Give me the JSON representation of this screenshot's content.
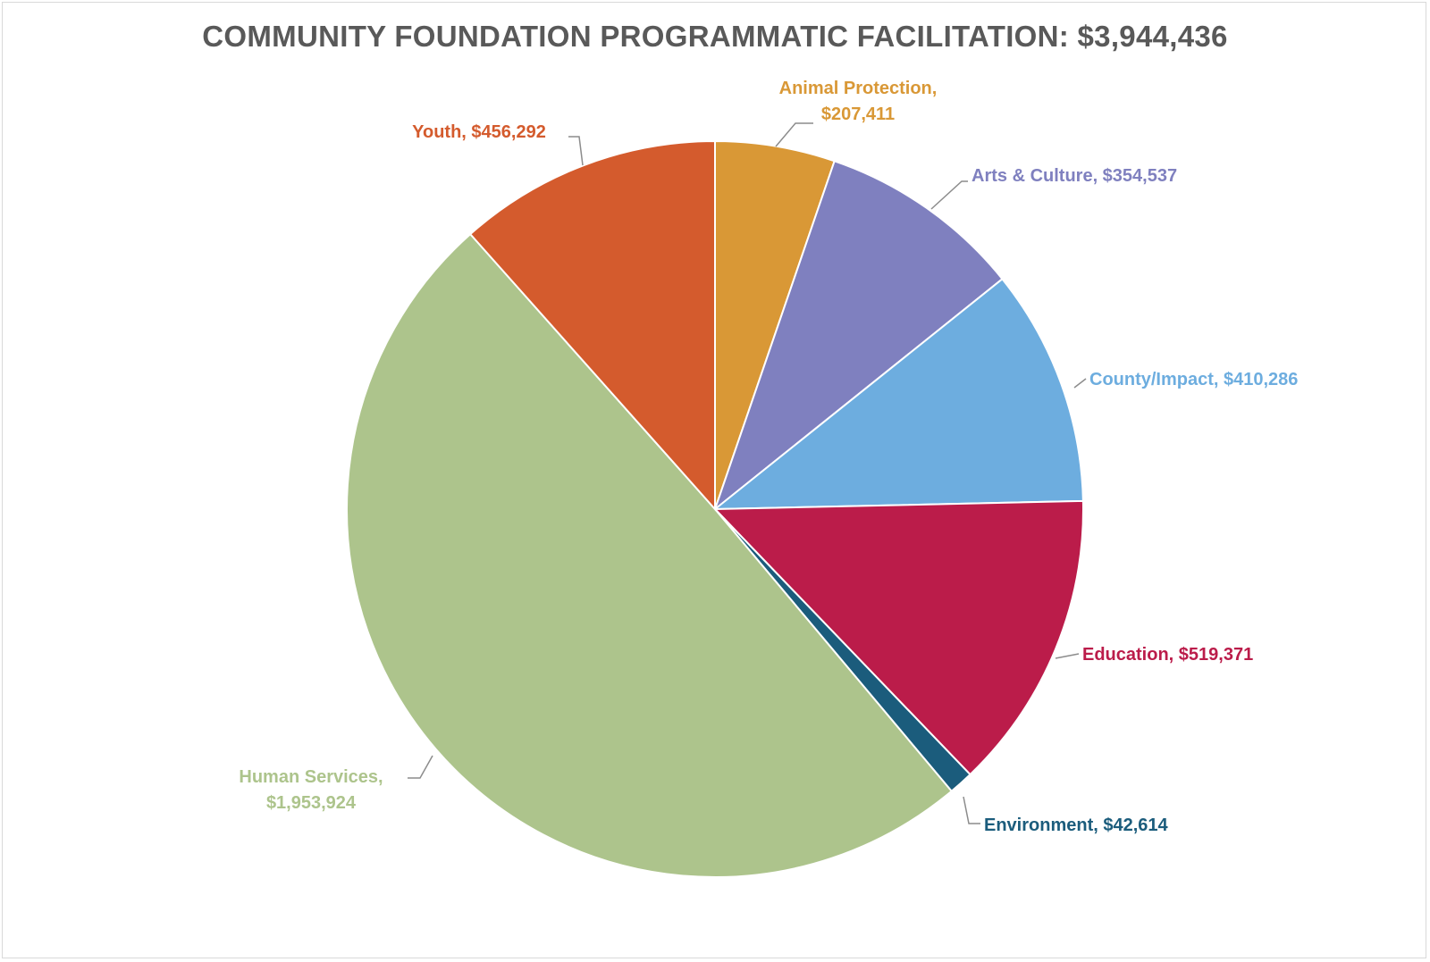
{
  "chart_data": {
    "type": "pie",
    "title": "COMMUNITY FOUNDATION PROGRAMMATIC FACILITATION: $3,944,436",
    "slices": [
      {
        "name": "Animal Protection",
        "value": 207411,
        "value_label": "$207,411",
        "color": "#d99836"
      },
      {
        "name": "Arts & Culture",
        "value": 354537,
        "value_label": "$354,537",
        "color": "#7f80bf"
      },
      {
        "name": "County/Impact",
        "value": 410286,
        "value_label": "$410,286",
        "color": "#6daddf"
      },
      {
        "name": "Education",
        "value": 519371,
        "value_label": "$519,371",
        "color": "#bb1c4a"
      },
      {
        "name": "Environment",
        "value": 42614,
        "value_label": "$42,614",
        "color": "#1b5c7c"
      },
      {
        "name": "Human Services",
        "value": 1953924,
        "value_label": "$1,953,924",
        "color": "#adc48c"
      },
      {
        "name": "Youth",
        "value": 456292,
        "value_label": "$456,292",
        "color": "#d45b2d"
      }
    ]
  }
}
